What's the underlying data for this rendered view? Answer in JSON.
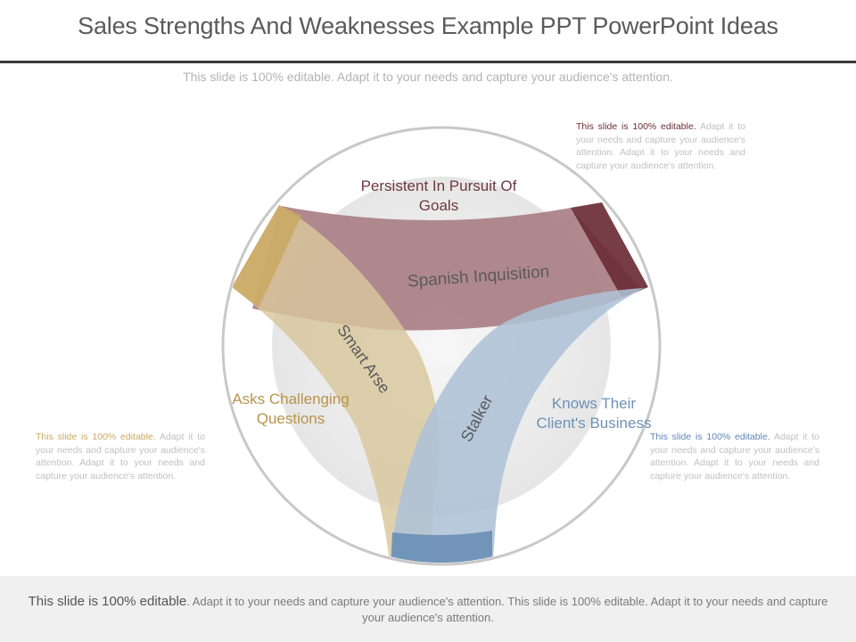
{
  "title": "Sales Strengths And Weaknesses Example PPT PowerPoint Ideas",
  "subtitle": "This slide is 100% editable. Adapt it to your needs and capture your audience's attention.",
  "notes": {
    "top": {
      "lead": "This slide is 100% editable.",
      "body": " Adapt it to your needs and capture your audience's attention. Adapt it to your needs and capture your audience's attention."
    },
    "left": {
      "lead": "This slide is 100% editable.",
      "body": " Adapt it to your needs and capture your audience's attention. Adapt it to your needs and capture your audience's attention."
    },
    "right": {
      "lead": "This slide is 100% editable.",
      "body": " Adapt it to your needs and capture your audience's attention. Adapt it to your needs and capture your audience's attention."
    }
  },
  "categories": {
    "top": "Persistent In Pursuit Of Goals",
    "left": "Asks Challenging Questions",
    "right": "Knows Their Client's Business"
  },
  "bands": {
    "maroon": "Spanish Inquisition",
    "tan": "Smart Arse",
    "blue": "Stalker"
  },
  "colors": {
    "maroon": "#a97f86",
    "maroon_dark": "#6b2c35",
    "tan": "#d9c79c",
    "tan_dark": "#c9a860",
    "blue": "#aec2d6",
    "blue_dark": "#6e91b7"
  },
  "footer": {
    "lead": "This slide is 100% editable",
    "body": ". Adapt it to your needs and capture your audience's attention. This slide is 100% editable. Adapt it to your needs and capture your audience's attention."
  }
}
